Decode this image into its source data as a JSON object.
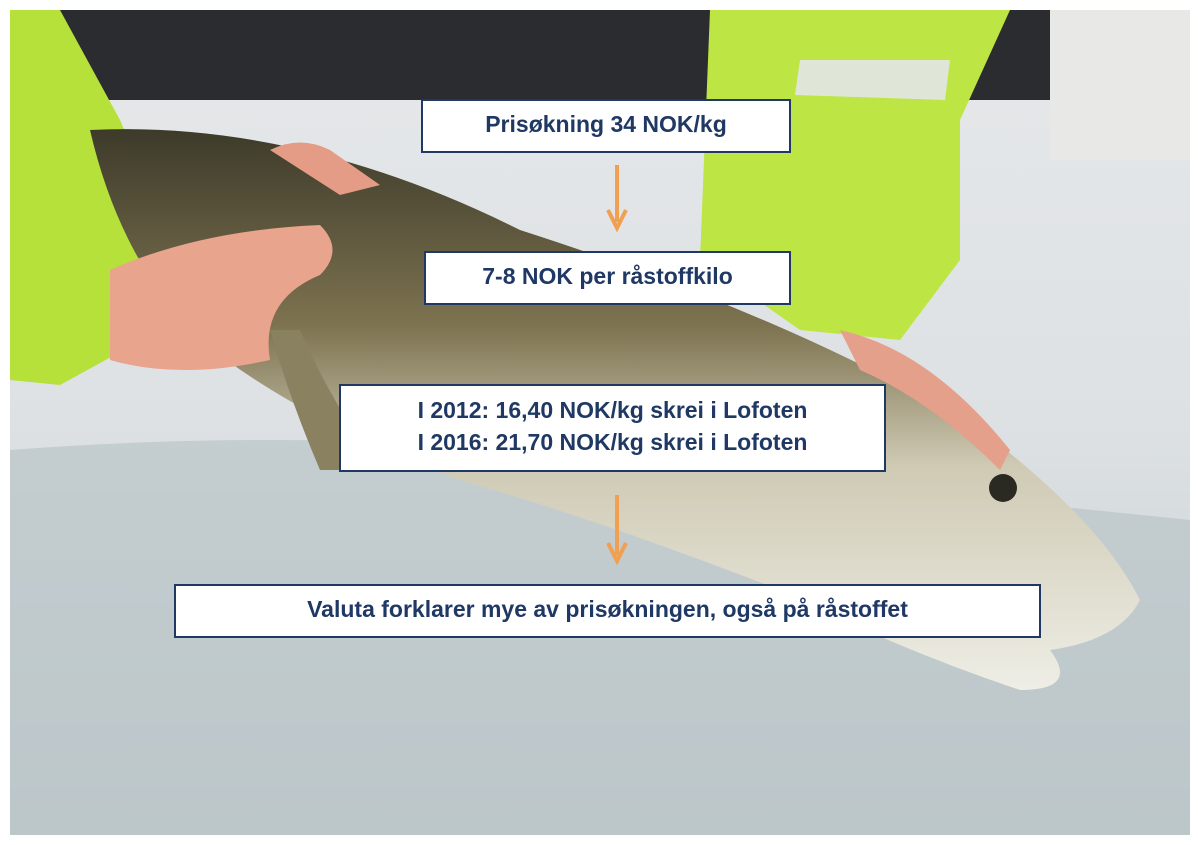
{
  "boxes": [
    {
      "lines": [
        "Prisøkning 34 NOK/kg"
      ]
    },
    {
      "lines": [
        "7-8 NOK per råstoffkilo"
      ]
    },
    {
      "lines": [
        "I 2012: 16,40 NOK/kg skrei i Lofoten",
        "I 2016: 21,70 NOK/kg skrei i Lofoten"
      ]
    },
    {
      "lines": [
        "Valuta forklarer mye av prisøkningen, også på råstoffet"
      ]
    }
  ]
}
